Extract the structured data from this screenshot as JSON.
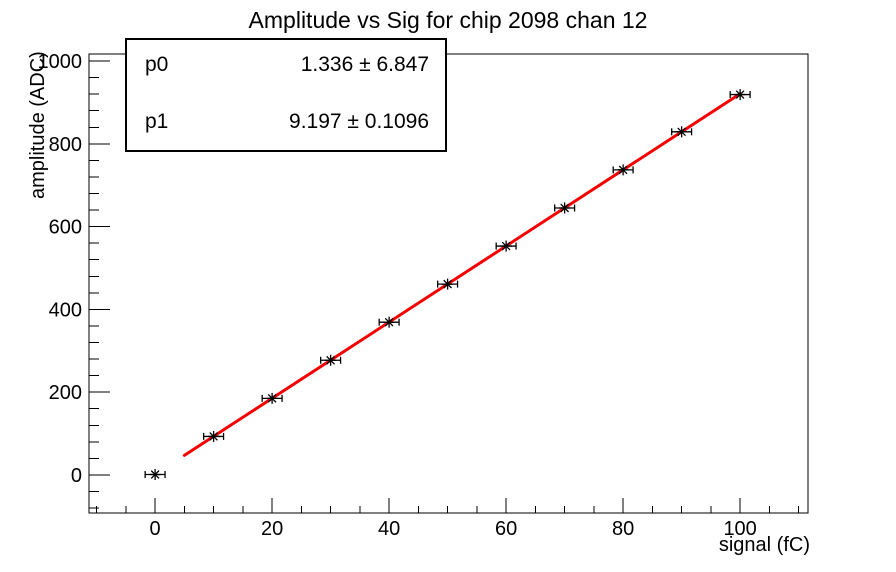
{
  "stats_box": {
    "rows": [
      {
        "name": "p0",
        "value": "1.336 ± 6.847"
      },
      {
        "name": "p1",
        "value": "9.197 ± 0.1096"
      }
    ]
  },
  "chart_data": {
    "type": "scatter",
    "title": "Amplitude vs Sig for chip 2098 chan 12",
    "xlabel": "signal (fC)",
    "ylabel": "amplitude (ADC)",
    "xlim": [
      -11.3,
      111.6
    ],
    "ylim": [
      -92,
      1017
    ],
    "x_major_ticks": [
      0,
      20,
      40,
      60,
      80,
      100
    ],
    "x_minor_step": 5,
    "y_major_ticks": [
      0,
      200,
      400,
      600,
      800,
      1000
    ],
    "y_minor_step": 40,
    "grid": false,
    "legend_position": "none",
    "marker": "star-with-x-error-bars",
    "marker_color": "#000000",
    "points": {
      "x": [
        0,
        10,
        20,
        30,
        40,
        50,
        60,
        70,
        80,
        90,
        100
      ],
      "y": [
        1,
        93,
        185,
        277,
        369,
        461,
        553,
        645,
        737,
        829,
        919
      ],
      "x_error": 1.7
    },
    "fit": {
      "label": "linear",
      "p0": 1.336,
      "p1": 9.197,
      "x_range": [
        5,
        100
      ],
      "color": "#f40000",
      "line_width": 3
    }
  }
}
